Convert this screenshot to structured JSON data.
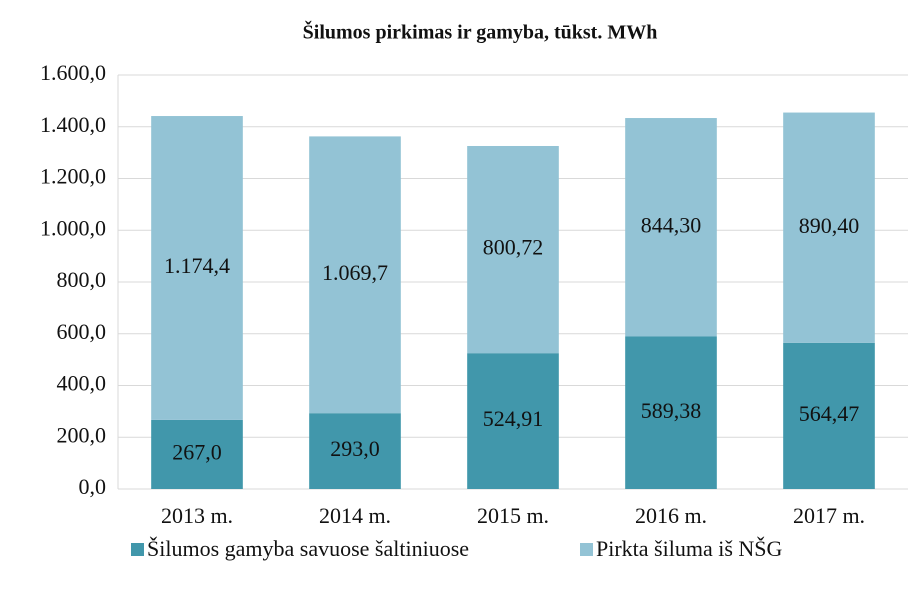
{
  "chart_data": {
    "type": "stacked_bar",
    "title": "Šilumos pirkimas ir gamyba, tūkst. MWh",
    "categories": [
      "2013 m.",
      "2014 m.",
      "2015 m.",
      "2016 m.",
      "2017 m."
    ],
    "series": [
      {
        "name": "Šilumos gamyba savuose šaltiniuose",
        "color": "#4197ab",
        "values": [
          267.0,
          293.0,
          524.91,
          589.38,
          564.47
        ],
        "value_labels": [
          "267,0",
          "293,0",
          "524,91",
          "589,38",
          "564,47"
        ]
      },
      {
        "name": "Pirkta šiluma iš NŠG",
        "color": "#93c3d5",
        "values": [
          1174.4,
          1069.7,
          800.72,
          844.3,
          890.4
        ],
        "value_labels": [
          "1.174,4",
          "1.069,7",
          "800,72",
          "844,30",
          "890,40"
        ]
      }
    ],
    "ylim": [
      0,
      1600
    ],
    "yticks": [
      {
        "value": 0,
        "label": "0,0"
      },
      {
        "value": 200,
        "label": "200,0"
      },
      {
        "value": 400,
        "label": "400,0"
      },
      {
        "value": 600,
        "label": "600,0"
      },
      {
        "value": 800,
        "label": "800,0"
      },
      {
        "value": 1000,
        "label": "1.000,0"
      },
      {
        "value": 1200,
        "label": "1.200,0"
      },
      {
        "value": 1400,
        "label": "1.400,0"
      },
      {
        "value": 1600,
        "label": "1.600,0"
      }
    ],
    "grid": true,
    "legend": "bottom"
  }
}
